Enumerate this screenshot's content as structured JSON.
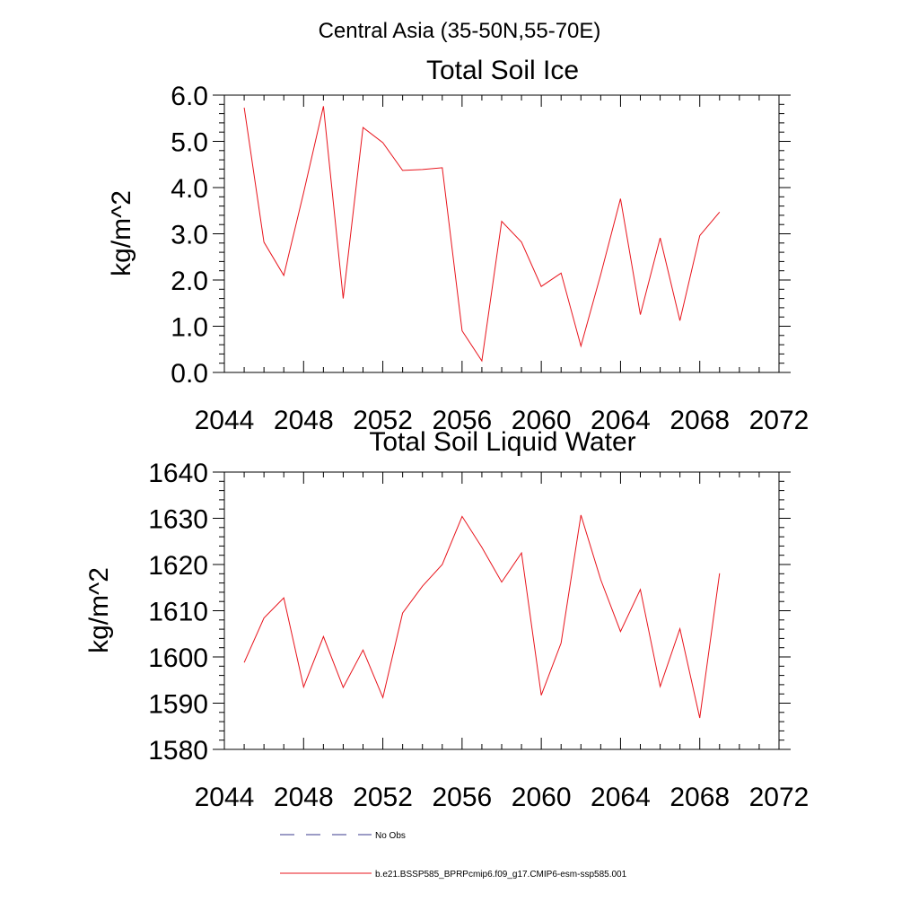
{
  "suptitle": "Central Asia (35-50N,55-70E)",
  "line_color": "#e8141c",
  "obs_color": "#3a3a8c",
  "legend": {
    "obs_label": "No Obs",
    "model_label": "b.e21.BSSP585_BPRPcmip6.f09_g17.CMIP6-esm-ssp585.001"
  },
  "chart_data": [
    {
      "type": "line",
      "title": "Total Soil Ice",
      "ylabel": "kg/m^2",
      "xlabel": "",
      "xlim": [
        2044,
        2072
      ],
      "ylim": [
        0,
        6
      ],
      "xticks": [
        2044,
        2048,
        2052,
        2056,
        2060,
        2064,
        2068,
        2072
      ],
      "xtick_labels": [
        "2044",
        "2048",
        "2052",
        "2056",
        "2060",
        "2064",
        "2068",
        "2072"
      ],
      "yticks": [
        0,
        1,
        2,
        3,
        4,
        5,
        6
      ],
      "ytick_labels": [
        "0.0",
        "1.0",
        "2.0",
        "3.0",
        "4.0",
        "5.0",
        "6.0"
      ],
      "grid": false,
      "series": [
        {
          "x": [
            2045,
            2046,
            2047,
            2048,
            2049,
            2050,
            2051,
            2052,
            2053,
            2054,
            2055,
            2056,
            2057,
            2058,
            2059,
            2060,
            2061,
            2062,
            2063,
            2064,
            2065,
            2066,
            2067,
            2068,
            2069
          ],
          "y": [
            5.73,
            2.82,
            2.1,
            3.89,
            5.76,
            1.6,
            5.3,
            4.97,
            4.37,
            4.39,
            4.43,
            0.9,
            0.25,
            3.27,
            2.82,
            1.86,
            2.15,
            0.57,
            2.12,
            3.76,
            1.25,
            2.91,
            1.12,
            2.96,
            3.47
          ]
        }
      ]
    },
    {
      "type": "line",
      "title": "Total Soil Liquid Water",
      "ylabel": "kg/m^2",
      "xlabel": "",
      "xlim": [
        2044,
        2072
      ],
      "ylim": [
        1580,
        1640
      ],
      "xticks": [
        2044,
        2048,
        2052,
        2056,
        2060,
        2064,
        2068,
        2072
      ],
      "xtick_labels": [
        "2044",
        "2048",
        "2052",
        "2056",
        "2060",
        "2064",
        "2068",
        "2072"
      ],
      "yticks": [
        1580,
        1590,
        1600,
        1610,
        1620,
        1630,
        1640
      ],
      "ytick_labels": [
        "1580",
        "1590",
        "1600",
        "1610",
        "1620",
        "1630",
        "1640"
      ],
      "grid": false,
      "series": [
        {
          "x": [
            2045,
            2046,
            2047,
            2048,
            2049,
            2050,
            2051,
            2052,
            2053,
            2054,
            2055,
            2056,
            2057,
            2058,
            2059,
            2060,
            2061,
            2062,
            2063,
            2064,
            2065,
            2066,
            2067,
            2068,
            2069
          ],
          "y": [
            1598.8,
            1608.4,
            1612.8,
            1593.5,
            1604.4,
            1593.4,
            1601.5,
            1591.2,
            1609.5,
            1615.3,
            1620.0,
            1630.4,
            1623.7,
            1616.2,
            1622.5,
            1591.7,
            1603.0,
            1630.7,
            1616.7,
            1605.5,
            1614.6,
            1593.6,
            1606.1,
            1586.8,
            1618.1
          ]
        }
      ]
    }
  ]
}
